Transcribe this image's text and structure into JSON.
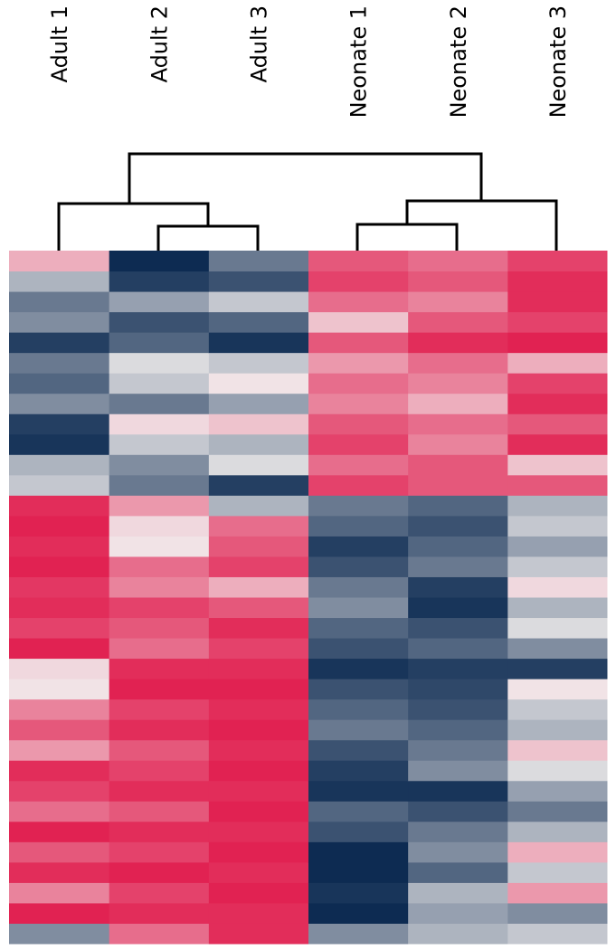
{
  "chart_data": {
    "type": "heatmap",
    "categories": [
      "Adult 1",
      "Adult 2",
      "Adult 3",
      "Neonate 1",
      "Neonate 2",
      "Neonate 3"
    ],
    "vlim": [
      -1,
      1
    ],
    "colorscale": [
      "#0d2b52",
      "#f2eeee",
      "#e0174a"
    ],
    "values": [
      [
        0.3,
        -1,
        -0.6,
        0.7,
        0.6,
        0.8
      ],
      [
        -0.3,
        -0.9,
        -0.8,
        0.8,
        0.7,
        0.9
      ],
      [
        -0.6,
        -0.4,
        -0.2,
        0.6,
        0.5,
        0.9
      ],
      [
        -0.5,
        -0.8,
        -0.7,
        0.2,
        0.7,
        0.8
      ],
      [
        -0.9,
        -0.7,
        -0.95,
        0.7,
        0.9,
        0.95
      ],
      [
        -0.6,
        -0.1,
        -0.2,
        0.4,
        0.6,
        0.3
      ],
      [
        -0.7,
        -0.2,
        0.05,
        0.6,
        0.5,
        0.8
      ],
      [
        -0.5,
        -0.6,
        -0.4,
        0.5,
        0.3,
        0.9
      ],
      [
        -0.9,
        0.1,
        0.2,
        0.7,
        0.6,
        0.7
      ],
      [
        -0.95,
        -0.2,
        -0.3,
        0.8,
        0.5,
        0.9
      ],
      [
        -0.3,
        -0.5,
        -0.1,
        0.6,
        0.7,
        0.2
      ],
      [
        -0.2,
        -0.6,
        -0.9,
        0.8,
        0.7,
        0.7
      ],
      [
        0.9,
        0.4,
        -0.3,
        -0.6,
        -0.7,
        -0.3
      ],
      [
        0.95,
        0.1,
        0.6,
        -0.7,
        -0.8,
        -0.2
      ],
      [
        0.9,
        0.05,
        0.7,
        -0.9,
        -0.7,
        -0.4
      ],
      [
        0.95,
        0.6,
        0.8,
        -0.8,
        -0.6,
        -0.2
      ],
      [
        0.85,
        0.5,
        0.3,
        -0.6,
        -0.9,
        0.1
      ],
      [
        0.9,
        0.8,
        0.7,
        -0.5,
        -0.95,
        -0.3
      ],
      [
        0.8,
        0.7,
        0.9,
        -0.7,
        -0.8,
        -0.1
      ],
      [
        0.95,
        0.6,
        0.8,
        -0.8,
        -0.7,
        -0.5
      ],
      [
        0.1,
        0.9,
        0.9,
        -0.95,
        -0.9,
        -0.9
      ],
      [
        0.05,
        0.95,
        0.95,
        -0.8,
        -0.85,
        0.05
      ],
      [
        0.5,
        0.8,
        0.9,
        -0.7,
        -0.8,
        -0.2
      ],
      [
        0.7,
        0.9,
        0.95,
        -0.6,
        -0.7,
        -0.3
      ],
      [
        0.4,
        0.7,
        0.9,
        -0.8,
        -0.6,
        0.2
      ],
      [
        0.9,
        0.8,
        0.95,
        -0.9,
        -0.5,
        -0.1
      ],
      [
        0.8,
        0.9,
        0.9,
        -0.95,
        -0.95,
        -0.4
      ],
      [
        0.6,
        0.7,
        0.95,
        -0.7,
        -0.8,
        -0.6
      ],
      [
        0.95,
        0.9,
        0.9,
        -0.8,
        -0.6,
        -0.3
      ],
      [
        0.7,
        0.8,
        0.95,
        -1,
        -0.5,
        0.3
      ],
      [
        0.9,
        0.95,
        0.9,
        -1,
        -0.7,
        -0.2
      ],
      [
        0.5,
        0.8,
        0.95,
        -0.95,
        -0.3,
        0.4
      ],
      [
        0.95,
        0.9,
        0.9,
        -1,
        -0.4,
        -0.5
      ],
      [
        -0.5,
        0.6,
        0.9,
        -0.5,
        -0.3,
        -0.2
      ]
    ]
  }
}
